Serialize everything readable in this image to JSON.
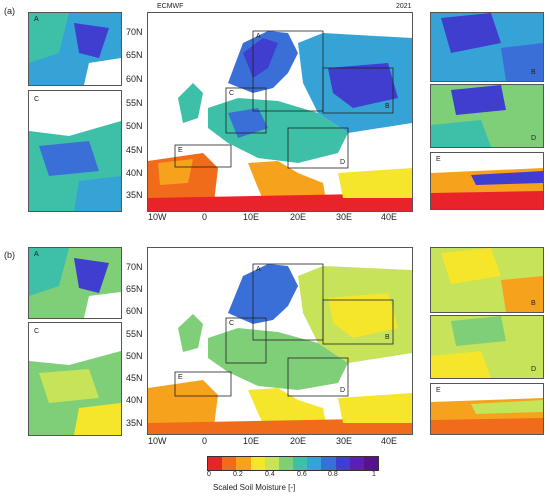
{
  "panels": {
    "a": {
      "label": "(a)"
    },
    "b": {
      "label": "(b)"
    }
  },
  "header": {
    "left": "ECMWF",
    "right": "2021"
  },
  "lat_ticks": [
    "70N",
    "65N",
    "60N",
    "55N",
    "50N",
    "45N",
    "40N",
    "35N"
  ],
  "lon_ticks": [
    "10W",
    "0",
    "10E",
    "20E",
    "30E",
    "40E"
  ],
  "lat_ticks_b": [
    "70N",
    "65N",
    "60N",
    "55N",
    "50N",
    "45N",
    "40N",
    "35N"
  ],
  "lon_ticks_b": [
    "10W",
    "0",
    "10E",
    "20E",
    "30E",
    "40E"
  ],
  "inset_letters": [
    "A",
    "B",
    "C",
    "D",
    "E"
  ],
  "legend": {
    "title": "Scaled Soil Moisture [-]",
    "ticks": [
      "0",
      "0.2",
      "0.4",
      "0.6",
      "0.8",
      "1"
    ],
    "colors": [
      "#e8232a",
      "#f06b1a",
      "#f7a21c",
      "#f5e62c",
      "#c6e35a",
      "#7fcf78",
      "#3ebfa8",
      "#36a3d6",
      "#3b6fd8",
      "#3f3ecf",
      "#5b1fb3",
      "#57148a"
    ]
  },
  "colors": {
    "sea": "#ffffff",
    "land_wet": "#3f3ecf",
    "land_mid": "#36a3d6",
    "land_dry": "#f06b1a",
    "box": "#222222"
  }
}
